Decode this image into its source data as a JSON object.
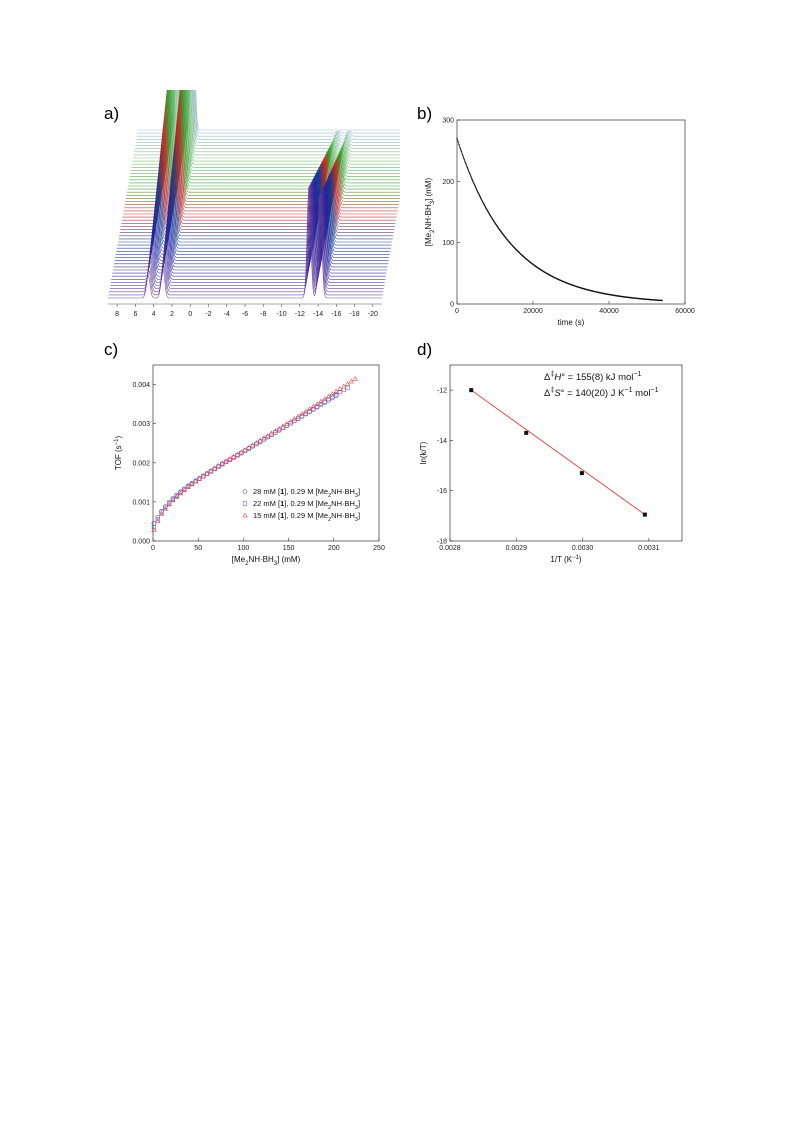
{
  "panels": {
    "a": {
      "label": "a)"
    },
    "b": {
      "label": "b)"
    },
    "c": {
      "label": "c)"
    },
    "d": {
      "label": "d)"
    }
  },
  "chart_data": [
    {
      "id": "a",
      "type": "line",
      "description_kind": "stacked-nmr-spectra",
      "xlim": [
        9,
        -21
      ],
      "xticks": [
        8,
        6,
        4,
        2,
        0,
        -2,
        -4,
        -6,
        -8,
        -10,
        -12,
        -14,
        -16,
        -18,
        -20
      ],
      "xtick_labels": [
        "8",
        "6",
        "4",
        "2",
        "0",
        "-2",
        "-4",
        "-6",
        "-8",
        "-10",
        "-12",
        "-14",
        "-16",
        "-18",
        "-20"
      ],
      "n_traces": 55,
      "color_gradient": [
        "#6a3d9a",
        "#1f1f9e",
        "#0b3d91",
        "#d7191c",
        "#2ca02c",
        "#7fbf7b",
        "#8fb4d9"
      ],
      "peaks": [
        {
          "ppm": 4.6,
          "height_start": 0.15,
          "height_end": 1.0
        },
        {
          "ppm": 3.0,
          "height_start": 0.2,
          "height_end": 1.15
        },
        {
          "ppm": -13.0,
          "height_start": 0.75,
          "height_end": 0.0
        },
        {
          "ppm": -14.2,
          "height_start": 0.7,
          "height_end": 0.0
        }
      ]
    },
    {
      "id": "b",
      "type": "scatter",
      "xlabel": "time (s)",
      "ylabel_parts": [
        "[Me",
        "2",
        "NH·BH",
        "3",
        "] (mM)"
      ],
      "xlim": [
        0,
        60000
      ],
      "ylim": [
        0,
        300
      ],
      "xticks": [
        0,
        20000,
        40000,
        60000
      ],
      "xtick_labels": [
        "0",
        "20000",
        "40000",
        "60000"
      ],
      "yticks": [
        0,
        100,
        200,
        300
      ],
      "ytick_labels": [
        "0",
        "100",
        "200",
        "300"
      ],
      "decay": {
        "c0": 270,
        "k": 7.15e-05,
        "t_end": 54000
      },
      "color": "#111111"
    },
    {
      "id": "c",
      "type": "scatter",
      "xlabel_parts": [
        "[Me",
        "2",
        "NH·BH",
        "3",
        "] (mM)"
      ],
      "ylabel_parts": [
        "TOF (s",
        "−1",
        ")"
      ],
      "xlim": [
        0,
        250
      ],
      "ylim": [
        0,
        0.0045
      ],
      "xticks": [
        0,
        50,
        100,
        150,
        200,
        250
      ],
      "xtick_labels": [
        "0",
        "50",
        "100",
        "150",
        "200",
        "250"
      ],
      "yticks": [
        0,
        0.001,
        0.002,
        0.003,
        0.004
      ],
      "ytick_labels": [
        "0.000",
        "0.001",
        "0.002",
        "0.003",
        "0.004"
      ],
      "legend_position": "center-right",
      "series": [
        {
          "name_parts": [
            "28 mM [",
            "1",
            "], 0.29 M [Me",
            "2",
            "NH·BH",
            "3",
            "]"
          ],
          "marker": "circle",
          "color": "#4a4aa8",
          "x_max": 205,
          "x": [
            2,
            5,
            10,
            20,
            30,
            40,
            50,
            75,
            100,
            125,
            150,
            175,
            205
          ],
          "y": [
            0.00045,
            0.0006,
            0.00078,
            0.00105,
            0.00125,
            0.00143,
            0.00158,
            0.00195,
            0.00228,
            0.00263,
            0.00298,
            0.00333,
            0.00375
          ]
        },
        {
          "name_parts": [
            "22 mM [",
            "1",
            "], 0.29 M [Me",
            "2",
            "NH·BH",
            "3",
            "]"
          ],
          "marker": "square",
          "color": "#6b6bd6",
          "x_max": 218,
          "x": [
            2,
            5,
            10,
            20,
            30,
            40,
            50,
            75,
            100,
            125,
            150,
            175,
            200,
            218
          ],
          "y": [
            0.00035,
            0.00055,
            0.00075,
            0.00102,
            0.00123,
            0.00141,
            0.00157,
            0.00194,
            0.00228,
            0.00263,
            0.00298,
            0.00334,
            0.00372,
            0.00395
          ]
        },
        {
          "name_parts": [
            "15 mM [",
            "1",
            "], 0.29 M [Me",
            "2",
            "NH·BH",
            "3",
            "]"
          ],
          "marker": "triangle",
          "color": "#e05050",
          "x_max": 224,
          "x": [
            2,
            5,
            10,
            20,
            30,
            40,
            50,
            75,
            100,
            125,
            150,
            175,
            200,
            224
          ],
          "y": [
            0.00028,
            0.0005,
            0.00072,
            0.001,
            0.00121,
            0.0014,
            0.00157,
            0.00196,
            0.0023,
            0.00266,
            0.00302,
            0.0034,
            0.00378,
            0.00415
          ]
        }
      ]
    },
    {
      "id": "d",
      "type": "scatter",
      "xlabel_parts": [
        "1/T (K",
        "−1",
        ")"
      ],
      "ylabel": "ln(k/T)",
      "xlim": [
        0.0028,
        0.00315
      ],
      "ylim": [
        -18,
        -11
      ],
      "xticks": [
        0.0028,
        0.0029,
        0.003,
        0.0031
      ],
      "xtick_labels": [
        "0.0028",
        "0.0029",
        "0.0030",
        "0.0031"
      ],
      "yticks": [
        -18,
        -16,
        -14,
        -12
      ],
      "ytick_labels": [
        "-18",
        "-16",
        "-14",
        "-12"
      ],
      "points": {
        "x": [
          0.002832,
          0.002915,
          0.002999,
          0.003094
        ],
        "y": [
          -12.0,
          -13.7,
          -15.3,
          -16.95
        ]
      },
      "fit_line": {
        "x": [
          0.002832,
          0.003094
        ],
        "y": [
          -12.0,
          -16.95
        ],
        "color": "#e05050"
      },
      "annotations": [
        {
          "parts": [
            "Δ",
            "‡",
            "H",
            "° = 155(8) kJ mol",
            "−1"
          ]
        },
        {
          "parts": [
            "Δ",
            "‡",
            "S",
            "° = 140(20) J K",
            "−1",
            " mol",
            "−1"
          ]
        }
      ]
    }
  ]
}
